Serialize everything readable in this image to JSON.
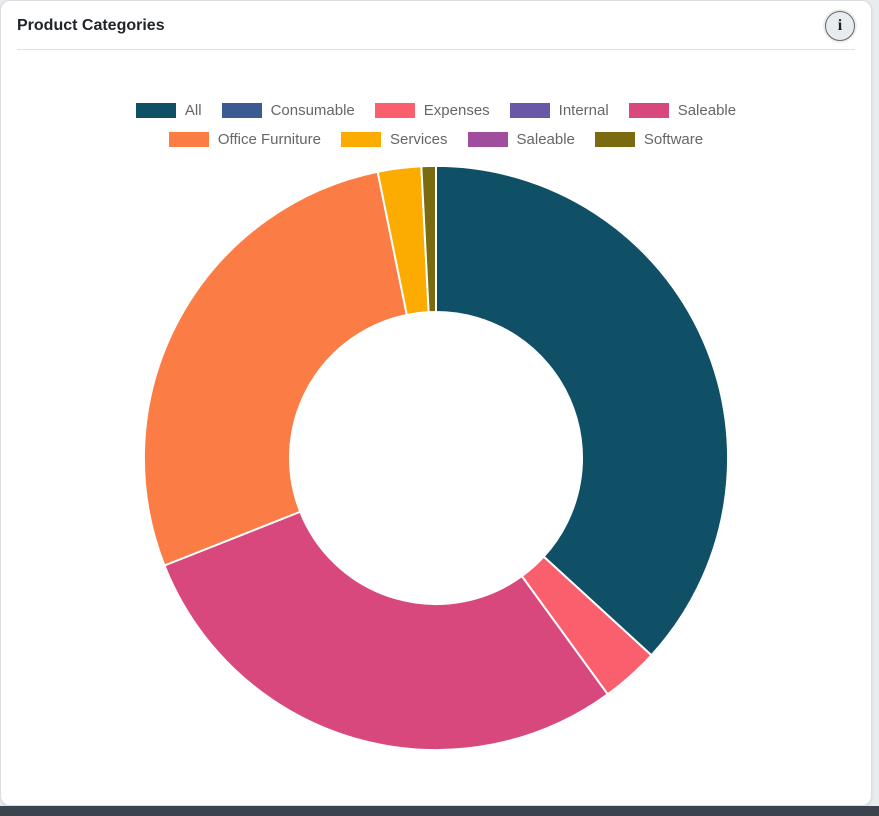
{
  "header": {
    "title": "Product Categories",
    "info_icon_glyph": "i"
  },
  "colors": {
    "card_background": "#ffffff",
    "page_background": "#e9ecef",
    "bottom_strip": "#3b434f",
    "divider": "#dee2e6",
    "legend_text": "#666666",
    "title_text": "#212529"
  },
  "chart_data": {
    "type": "pie",
    "title": "Product Categories",
    "subtype": "doughnut",
    "cutout_percent": 50,
    "legend_position": "top",
    "legend_row_split": [
      5,
      4
    ],
    "legend": [
      {
        "label": "All",
        "color": "#0f5066"
      },
      {
        "label": "Consumable",
        "color": "#3a5a92"
      },
      {
        "label": "Expenses",
        "color": "#fa5f6d"
      },
      {
        "label": "Internal",
        "color": "#6a57a5"
      },
      {
        "label": "Saleable",
        "color": "#d8487c"
      },
      {
        "label": "Office Furniture",
        "color": "#fb7d45"
      },
      {
        "label": "Services",
        "color": "#fcac00"
      },
      {
        "label": "Saleable",
        "color": "#a04d9e"
      },
      {
        "label": "Software",
        "color": "#7b6b10"
      }
    ],
    "slices": [
      {
        "label": "All",
        "percent": 36.8,
        "color": "#0f5066"
      },
      {
        "label": "Expenses",
        "percent": 3.2,
        "color": "#fa5f6d"
      },
      {
        "label": "Saleable",
        "percent": 29.0,
        "color": "#d8487c"
      },
      {
        "label": "Office Furniture",
        "percent": 27.8,
        "color": "#fb7d45"
      },
      {
        "label": "Services",
        "percent": 2.4,
        "color": "#fcac00"
      },
      {
        "label": "Software",
        "percent": 0.8,
        "color": "#7b6b10"
      }
    ]
  }
}
